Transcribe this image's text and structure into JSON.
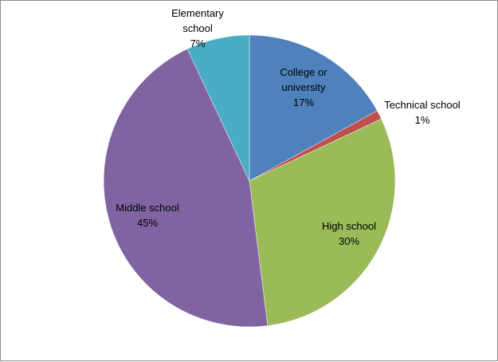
{
  "chart_data": {
    "type": "pie",
    "title": "",
    "legend": "none",
    "start_angle_deg": 0,
    "direction": "clockwise",
    "slices": [
      {
        "label": [
          "College or",
          "university"
        ],
        "value": 17,
        "value_label": "17%",
        "color": "#4F81BD"
      },
      {
        "label": [
          "Technical school"
        ],
        "value": 1,
        "value_label": "1%",
        "color": "#C0504D"
      },
      {
        "label": [
          "High school"
        ],
        "value": 30,
        "value_label": "30%",
        "color": "#9BBB59"
      },
      {
        "label": [
          "Middle school"
        ],
        "value": 45,
        "value_label": "45%",
        "color": "#8064A2"
      },
      {
        "label": [
          "Elementary",
          "school"
        ],
        "value": 7,
        "value_label": "7%",
        "color": "#4BACC6"
      }
    ]
  }
}
